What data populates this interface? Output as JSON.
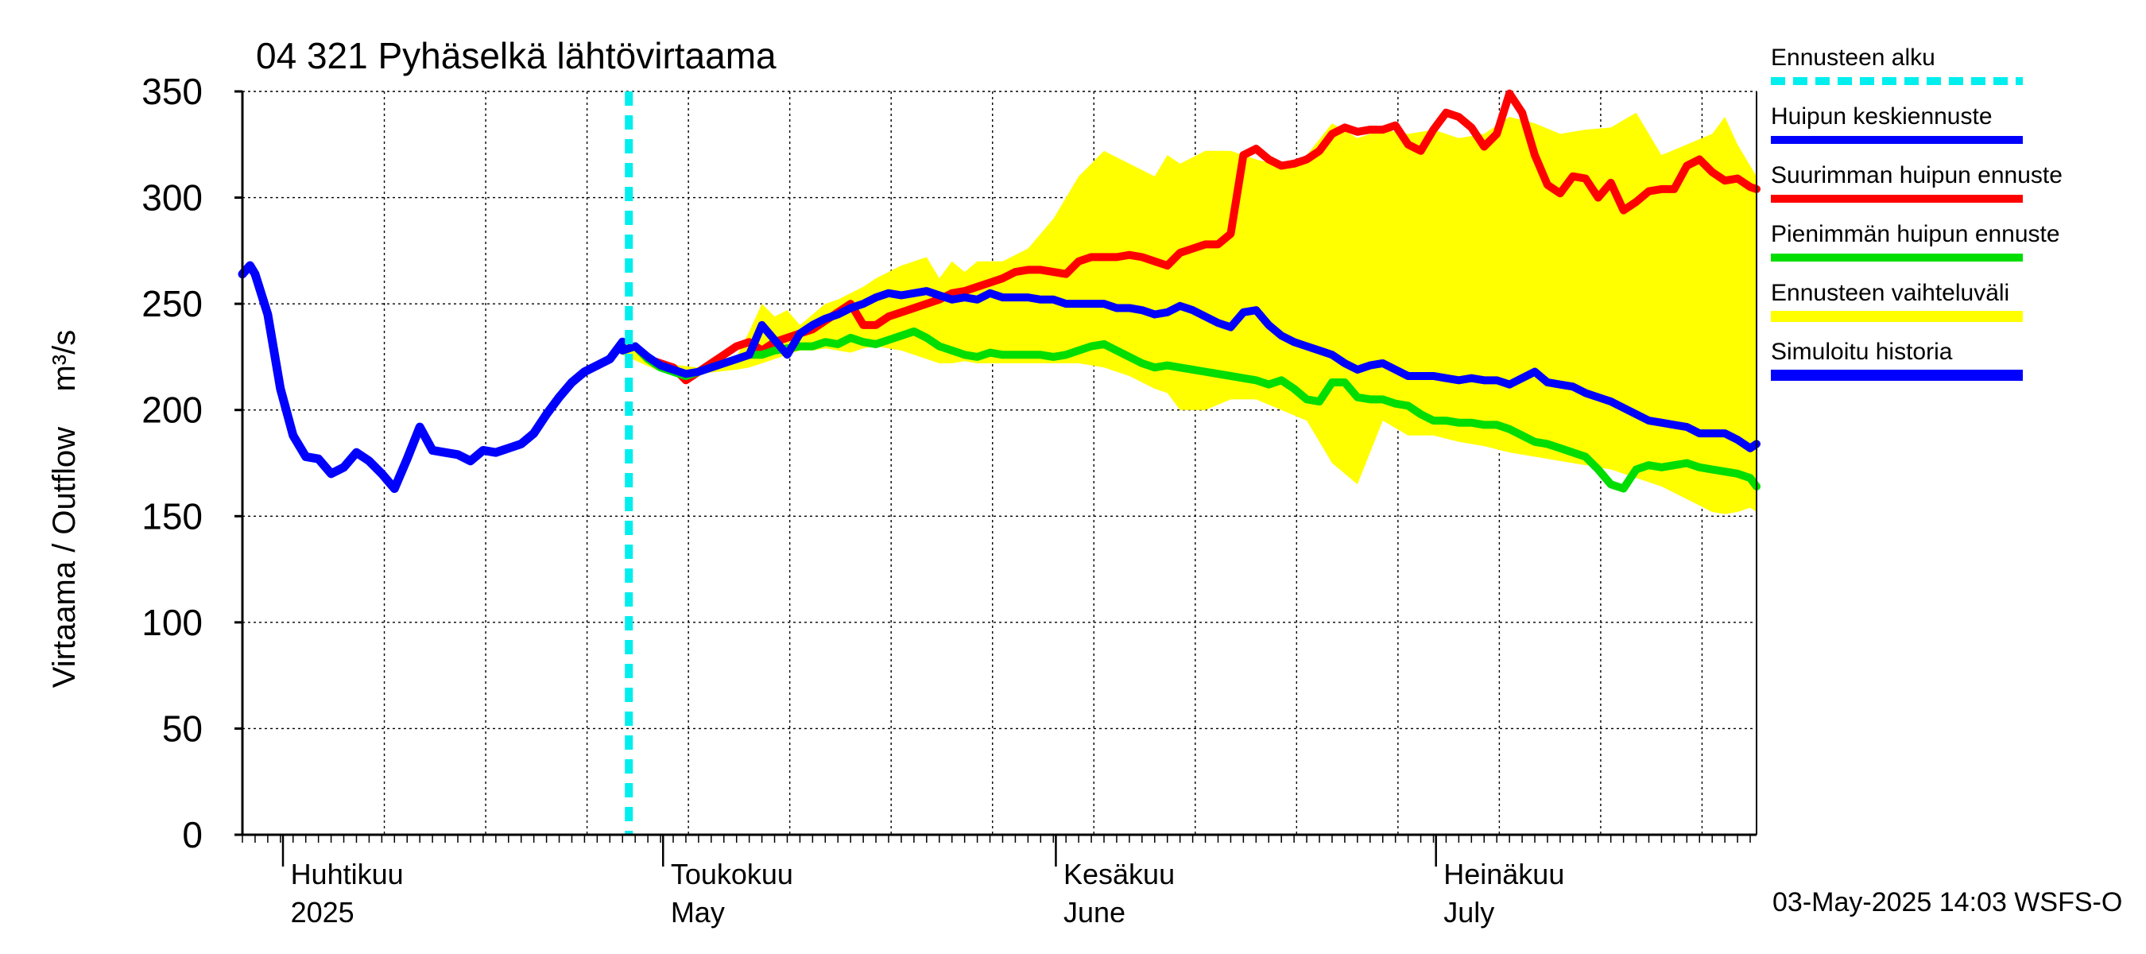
{
  "chart_data": {
    "type": "line",
    "title": "04 321 Pyhäselkä lähtövirtaama",
    "ylabel": "Virtaama / Outflow    m³/s",
    "ylim": [
      0,
      350
    ],
    "yticks": [
      0,
      50,
      100,
      150,
      200,
      250,
      300,
      350
    ],
    "x_axis": {
      "start_day": "2025-03-28",
      "end_day": "2025-07-31",
      "month_labels": [
        {
          "day": 4,
          "fi": "Huhtikuu",
          "en": "2025"
        },
        {
          "day": 34,
          "fi": "Toukokuu",
          "en": "May"
        },
        {
          "day": 65,
          "fi": "Kesäkuu",
          "en": "June"
        },
        {
          "day": 95,
          "fi": "Heinäkuu",
          "en": "July"
        }
      ]
    },
    "forecast_start_day": 30.5,
    "timestamp": "03-May-2025 14:03 WSFS-O",
    "legend": [
      {
        "label": "Ennusteen alku",
        "color": "#00eeee",
        "dashed": true
      },
      {
        "label": "Huipun keskiennuste",
        "color": "#0000ff"
      },
      {
        "label": "Suurimman huipun ennuste",
        "color": "#ff0000"
      },
      {
        "label": "Pienimmän huipun ennuste",
        "color": "#00dd00"
      },
      {
        "label": "Ennusteen vaihteluväli",
        "color": "#ffff00"
      },
      {
        "label": "Simuloitu historia",
        "color": "#0000ff"
      }
    ],
    "band": {
      "name": "Ennusteen vaihteluväli",
      "x": [
        30,
        33,
        36,
        39,
        40,
        41,
        42,
        43,
        44,
        45,
        46,
        47,
        48,
        49,
        50,
        52,
        54,
        55,
        56,
        57,
        58,
        60,
        62,
        64,
        66,
        68,
        70,
        72,
        73,
        74,
        76,
        78,
        80,
        82,
        84,
        86,
        88,
        90,
        92,
        94,
        96,
        98,
        100,
        102,
        104,
        106,
        108,
        110,
        112,
        114,
        116,
        117,
        118,
        119,
        119.5
      ],
      "upper": [
        233,
        222,
        220,
        225,
        237,
        250,
        244,
        247,
        240,
        245,
        250,
        252,
        255,
        258,
        262,
        268,
        272,
        262,
        270,
        265,
        270,
        270,
        276,
        290,
        310,
        322,
        316,
        310,
        320,
        316,
        322,
        322,
        318,
        315,
        320,
        335,
        328,
        332,
        330,
        332,
        328,
        330,
        338,
        335,
        330,
        332,
        333,
        340,
        320,
        325,
        330,
        338,
        325,
        315,
        310
      ],
      "lower": [
        226,
        218,
        217,
        219,
        220,
        222,
        224,
        226,
        228,
        228,
        229,
        228,
        227,
        229,
        230,
        228,
        224,
        222,
        222,
        223,
        222,
        222,
        222,
        222,
        222,
        220,
        216,
        210,
        208,
        200,
        200,
        205,
        205,
        200,
        195,
        175,
        165,
        195,
        188,
        188,
        185,
        183,
        180,
        178,
        176,
        174,
        172,
        168,
        164,
        158,
        152,
        151,
        152,
        154,
        152
      ]
    },
    "series": [
      {
        "name": "Suurimman huipun ennuste",
        "color": "#ff0000",
        "x": [
          30,
          31,
          32,
          33,
          34,
          35,
          36,
          37,
          38,
          39,
          40,
          41,
          42,
          43,
          44,
          45,
          46,
          47,
          48,
          49,
          50,
          51,
          52,
          53,
          54,
          55,
          56,
          57,
          58,
          59,
          60,
          61,
          62,
          63,
          64,
          65,
          66,
          67,
          68,
          69,
          70,
          71,
          72,
          73,
          74,
          75,
          76,
          77,
          78,
          79,
          80,
          81,
          82,
          83,
          84,
          85,
          86,
          87,
          88,
          89,
          90,
          91,
          92,
          93,
          94,
          95,
          96,
          97,
          98,
          99,
          100,
          101,
          102,
          103,
          104,
          105,
          106,
          107,
          108,
          109,
          110,
          111,
          112,
          113,
          114,
          115,
          116,
          117,
          118,
          119,
          119.5
        ],
        "y": [
          228,
          230,
          224,
          222,
          220,
          214,
          218,
          222,
          226,
          230,
          232,
          228,
          232,
          234,
          236,
          238,
          242,
          246,
          250,
          240,
          240,
          244,
          246,
          248,
          250,
          252,
          255,
          256,
          258,
          260,
          262,
          265,
          266,
          266,
          265,
          264,
          270,
          272,
          272,
          272,
          273,
          272,
          270,
          268,
          274,
          276,
          278,
          278,
          283,
          320,
          323,
          318,
          315,
          316,
          318,
          322,
          330,
          333,
          331,
          332,
          332,
          334,
          325,
          322,
          332,
          340,
          338,
          333,
          324,
          330,
          349,
          340,
          320,
          306,
          302,
          310,
          309,
          300,
          307,
          294,
          298,
          303,
          304,
          304,
          315,
          318,
          312,
          308,
          309,
          305,
          304
        ]
      },
      {
        "name": "Pienimmän huipun ennuste",
        "color": "#00dd00",
        "x": [
          30,
          31,
          32,
          33,
          34,
          35,
          36,
          37,
          38,
          39,
          40,
          41,
          42,
          43,
          44,
          45,
          46,
          47,
          48,
          49,
          50,
          51,
          52,
          53,
          54,
          55,
          56,
          57,
          58,
          59,
          60,
          61,
          62,
          63,
          64,
          65,
          66,
          67,
          68,
          69,
          70,
          71,
          72,
          73,
          74,
          75,
          76,
          77,
          78,
          79,
          80,
          81,
          82,
          83,
          84,
          85,
          86,
          87,
          88,
          89,
          90,
          91,
          92,
          93,
          94,
          95,
          96,
          97,
          98,
          99,
          100,
          101,
          102,
          103,
          104,
          105,
          106,
          107,
          108,
          109,
          110,
          111,
          112,
          113,
          114,
          115,
          116,
          117,
          118,
          119,
          119.5
        ],
        "y": [
          228,
          230,
          224,
          220,
          218,
          216,
          218,
          220,
          222,
          224,
          226,
          226,
          228,
          229,
          230,
          230,
          232,
          231,
          234,
          232,
          231,
          233,
          235,
          237,
          234,
          230,
          228,
          226,
          225,
          227,
          226,
          226,
          226,
          226,
          225,
          226,
          228,
          230,
          231,
          228,
          225,
          222,
          220,
          221,
          220,
          219,
          218,
          217,
          216,
          215,
          214,
          212,
          214,
          210,
          205,
          204,
          213,
          213,
          206,
          205,
          205,
          203,
          202,
          198,
          195,
          195,
          194,
          194,
          193,
          193,
          191,
          188,
          185,
          184,
          182,
          180,
          178,
          172,
          165,
          163,
          172,
          174,
          173,
          174,
          175,
          173,
          172,
          171,
          170,
          168,
          164
        ]
      },
      {
        "name": "Huipun keskiennuste",
        "color": "#0000ff",
        "x": [
          30,
          31,
          32,
          33,
          34,
          35,
          36,
          37,
          38,
          39,
          40,
          41,
          42,
          43,
          44,
          45,
          46,
          47,
          48,
          49,
          50,
          51,
          52,
          53,
          54,
          55,
          56,
          57,
          58,
          59,
          60,
          61,
          62,
          63,
          64,
          65,
          66,
          67,
          68,
          69,
          70,
          71,
          72,
          73,
          74,
          75,
          76,
          77,
          78,
          79,
          80,
          81,
          82,
          83,
          84,
          85,
          86,
          87,
          88,
          89,
          90,
          91,
          92,
          93,
          94,
          95,
          96,
          97,
          98,
          99,
          100,
          101,
          102,
          103,
          104,
          105,
          106,
          107,
          108,
          109,
          110,
          111,
          112,
          113,
          114,
          115,
          116,
          117,
          118,
          119,
          119.5
        ],
        "y": [
          228,
          230,
          225,
          221,
          219,
          217,
          218,
          220,
          222,
          224,
          226,
          240,
          233,
          226,
          236,
          240,
          243,
          245,
          248,
          250,
          253,
          255,
          254,
          255,
          256,
          254,
          252,
          253,
          252,
          255,
          253,
          253,
          253,
          252,
          252,
          250,
          250,
          250,
          250,
          248,
          248,
          247,
          245,
          246,
          249,
          247,
          244,
          241,
          239,
          246,
          247,
          240,
          235,
          232,
          230,
          228,
          226,
          222,
          219,
          221,
          222,
          219,
          216,
          216,
          216,
          215,
          214,
          215,
          214,
          214,
          212,
          215,
          218,
          213,
          212,
          211,
          208,
          206,
          204,
          201,
          198,
          195,
          194,
          193,
          192,
          189,
          189,
          189,
          186,
          182,
          184
        ]
      },
      {
        "name": "Simuloitu historia",
        "color": "#0000ff",
        "x": [
          0,
          0.6,
          1,
          2,
          3,
          4,
          5,
          6,
          7,
          8,
          9,
          10,
          11,
          12,
          13,
          14,
          15,
          16,
          17,
          18,
          19,
          20,
          21,
          22,
          23,
          24,
          25,
          26,
          27,
          28,
          29,
          30
        ],
        "y": [
          264,
          268,
          264,
          245,
          210,
          188,
          178,
          177,
          170,
          173,
          180,
          176,
          170,
          163,
          177,
          192,
          181,
          180,
          179,
          176,
          181,
          180,
          182,
          184,
          189,
          198,
          206,
          213,
          218,
          221,
          224,
          232
        ]
      }
    ]
  }
}
